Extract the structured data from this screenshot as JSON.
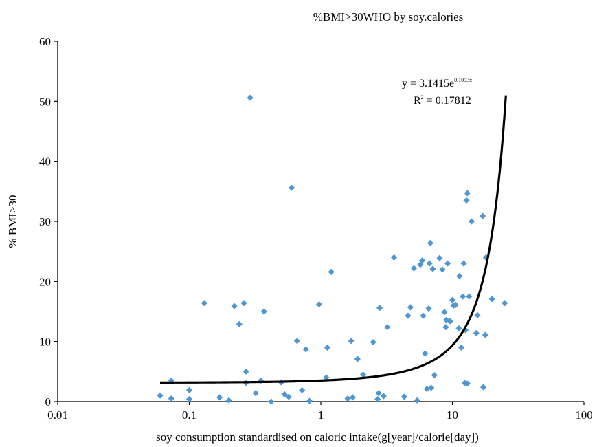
{
  "chart_data": {
    "type": "scatter",
    "title": "%BMI>30WHO by soy.calories",
    "xlabel": "soy consumption standardised on caloric intake(g[year]/calorie[day])",
    "ylabel": "% BMI>30",
    "x_scale": "log",
    "xlim": [
      0.01,
      100
    ],
    "ylim": [
      0,
      60
    ],
    "x_ticks": [
      0.01,
      0.1,
      1,
      10,
      100
    ],
    "x_tick_labels": [
      "0.01",
      "0.1",
      "1",
      "10",
      "100"
    ],
    "y_ticks": [
      0,
      10,
      20,
      30,
      40,
      50,
      60
    ],
    "y_tick_labels": [
      "0",
      "10",
      "20",
      "30",
      "40",
      "50",
      "60"
    ],
    "grid": false,
    "marker": "diamond",
    "point_color": "#4f97d3",
    "trendline": {
      "type": "exponential",
      "a": 3.1415,
      "b": 0.1093,
      "equation_lead": "y = 3.1415e",
      "equation_exponent": "0.1093x",
      "r2_lead": "R",
      "r2_sup": "2",
      "r2_value": " = 0.17812",
      "x_range": [
        0.06,
        25.5
      ],
      "color": "#000000"
    },
    "points": [
      [
        0.06,
        1.0
      ],
      [
        0.073,
        3.5
      ],
      [
        0.073,
        0.5
      ],
      [
        0.1,
        1.9
      ],
      [
        0.1,
        0.4
      ],
      [
        0.13,
        16.4
      ],
      [
        0.17,
        0.7
      ],
      [
        0.2,
        0.2
      ],
      [
        0.22,
        15.9
      ],
      [
        0.24,
        12.9
      ],
      [
        0.26,
        16.4
      ],
      [
        0.27,
        3.1
      ],
      [
        0.27,
        5.0
      ],
      [
        0.29,
        50.6
      ],
      [
        0.32,
        1.4
      ],
      [
        0.35,
        3.5
      ],
      [
        0.37,
        15.0
      ],
      [
        0.42,
        0.0
      ],
      [
        0.5,
        3.2
      ],
      [
        0.53,
        1.2
      ],
      [
        0.57,
        0.8
      ],
      [
        0.6,
        35.6
      ],
      [
        0.66,
        10.1
      ],
      [
        0.72,
        1.9
      ],
      [
        0.77,
        8.7
      ],
      [
        0.82,
        0.1
      ],
      [
        0.97,
        16.2
      ],
      [
        1.1,
        4.0
      ],
      [
        1.12,
        9.0
      ],
      [
        1.2,
        21.6
      ],
      [
        1.6,
        0.5
      ],
      [
        1.7,
        10.1
      ],
      [
        1.75,
        0.7
      ],
      [
        1.9,
        7.1
      ],
      [
        2.1,
        4.5
      ],
      [
        2.5,
        9.9
      ],
      [
        2.7,
        0.4
      ],
      [
        2.75,
        1.4
      ],
      [
        2.8,
        15.6
      ],
      [
        3.0,
        0.9
      ],
      [
        3.2,
        12.4
      ],
      [
        3.6,
        24.0
      ],
      [
        4.3,
        0.8
      ],
      [
        4.6,
        14.3
      ],
      [
        4.8,
        15.7
      ],
      [
        5.1,
        22.2
      ],
      [
        5.4,
        0.2
      ],
      [
        5.7,
        22.8
      ],
      [
        5.9,
        23.5
      ],
      [
        6.0,
        14.3
      ],
      [
        6.2,
        8.0
      ],
      [
        6.4,
        2.1
      ],
      [
        6.6,
        15.5
      ],
      [
        6.7,
        23.0
      ],
      [
        6.8,
        26.4
      ],
      [
        6.9,
        2.3
      ],
      [
        7.1,
        22.1
      ],
      [
        7.3,
        4.4
      ],
      [
        8.0,
        23.9
      ],
      [
        8.4,
        22.0
      ],
      [
        8.7,
        14.9
      ],
      [
        8.9,
        12.4
      ],
      [
        9.0,
        13.6
      ],
      [
        9.2,
        23.0
      ],
      [
        9.6,
        13.4
      ],
      [
        10.0,
        16.9
      ],
      [
        10.2,
        16.0
      ],
      [
        10.6,
        16.1
      ],
      [
        11.2,
        12.2
      ],
      [
        11.3,
        20.9
      ],
      [
        11.7,
        9.0
      ],
      [
        12.0,
        17.5
      ],
      [
        12.2,
        23.0
      ],
      [
        12.4,
        3.1
      ],
      [
        12.6,
        11.9
      ],
      [
        12.8,
        33.5
      ],
      [
        13.0,
        34.7
      ],
      [
        13.0,
        3.0
      ],
      [
        13.4,
        17.5
      ],
      [
        14.0,
        30.0
      ],
      [
        15.2,
        11.4
      ],
      [
        15.5,
        14.4
      ],
      [
        17.0,
        30.9
      ],
      [
        17.2,
        2.4
      ],
      [
        17.8,
        11.1
      ],
      [
        18.0,
        24.0
      ],
      [
        20.0,
        17.1
      ],
      [
        25.0,
        16.4
      ]
    ]
  }
}
